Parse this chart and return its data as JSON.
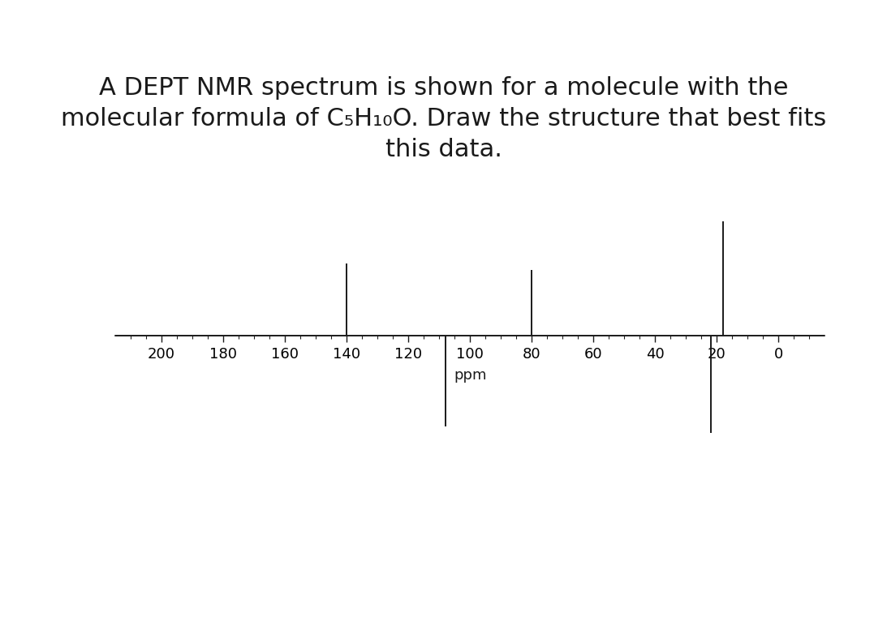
{
  "title_lines": [
    "A DEPT NMR spectrum is shown for a molecule with the",
    "molecular formula of C₅H₁₀O. Draw the structure that best fits",
    "this data."
  ],
  "xlim_left": 215,
  "xlim_right": -15,
  "ylim_bottom": -4.0,
  "ylim_top": 4.0,
  "xticks_major": [
    200,
    180,
    160,
    140,
    120,
    100,
    80,
    60,
    40,
    20,
    0
  ],
  "xticks_minor_step": 5,
  "xlabel": "ppm",
  "background_color": "#ffffff",
  "peaks": [
    {
      "ppm": 140,
      "height": 2.2
    },
    {
      "ppm": 108,
      "height": -2.8
    },
    {
      "ppm": 80,
      "height": 2.0
    },
    {
      "ppm": 18,
      "height": 3.5
    },
    {
      "ppm": 22,
      "height": -3.0
    }
  ],
  "line_color": "#1a1a1a",
  "axis_color": "#1a1a1a",
  "spine_linewidth": 1.2,
  "peak_linewidth": 1.4,
  "title_fontsize": 22,
  "tick_fontsize": 13,
  "xlabel_fontsize": 13
}
